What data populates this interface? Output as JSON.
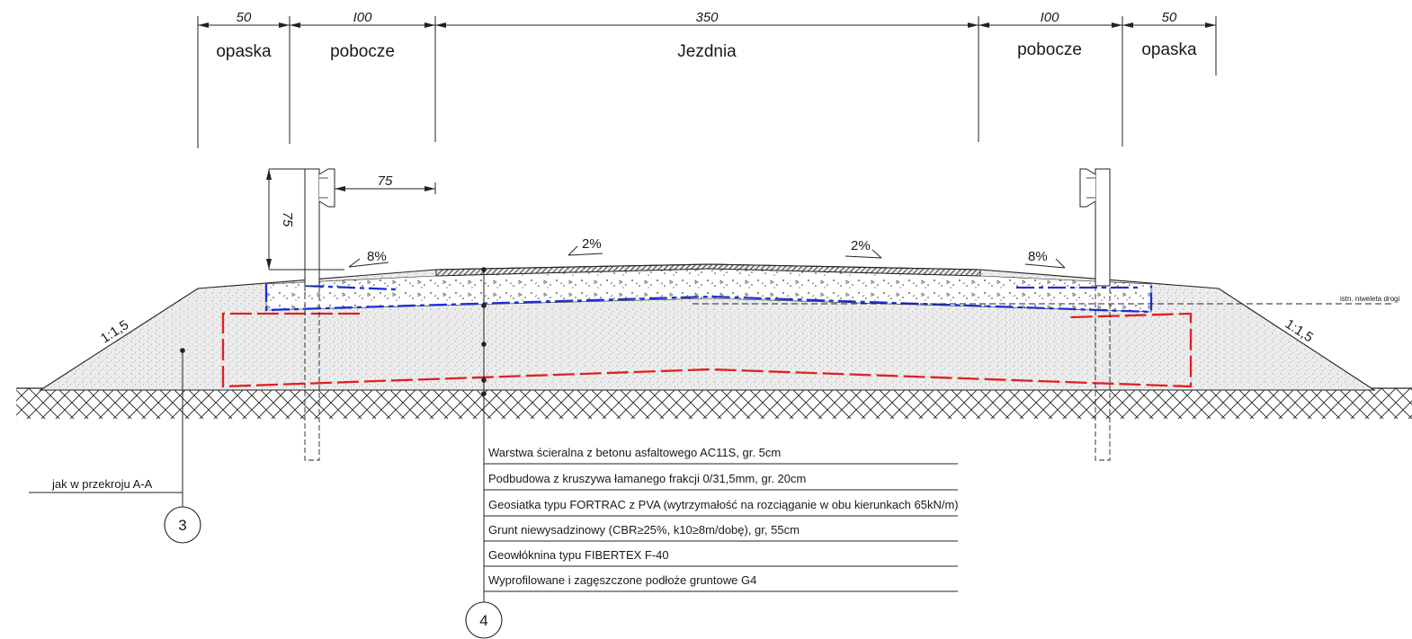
{
  "dimensions": {
    "top": [
      {
        "value": "50",
        "label": "opaska"
      },
      {
        "value": "I00",
        "label": "pobocze"
      },
      {
        "value": "350",
        "label": "Jezdnia"
      },
      {
        "value": "I00",
        "label": "pobocze"
      },
      {
        "value": "50",
        "label": "opaska"
      }
    ],
    "barrier_offset": "75",
    "barrier_height": "75"
  },
  "slopes": {
    "left_shoulder": "8%",
    "left_lane": "2%",
    "right_lane": "2%",
    "right_shoulder": "8%",
    "left_embankment": "1:1,5",
    "right_embankment": "1:1,5"
  },
  "notes": {
    "existing_grade": "istn. niweleta drogi",
    "reference": "jak w przekroju A-A"
  },
  "callouts": {
    "left": "3",
    "center": "4"
  },
  "layers": [
    "Warstwa ścieralna z betonu asfaltowego AC11S, gr. 5cm",
    "Podbudowa z kruszywa łamanego frakcji 0/31,5mm, gr. 20cm",
    "Geosiatka typu FORTRAC z PVA (wytrzymałość na rozciąganie w obu kierunkach 65kN/m)",
    "Grunt niewysadzinowy (CBR≥25%, k10≥8m/dobę), gr, 55cm",
    "Geowłóknina typu FIBERTEX F-40",
    "Wyprofilowane i zagęszczone podłoże gruntowe G4"
  ],
  "colors": {
    "geogrid": "#1a2fd6",
    "geotextile": "#e02020",
    "lines": "#222222",
    "fill": "#e9e9e9"
  }
}
